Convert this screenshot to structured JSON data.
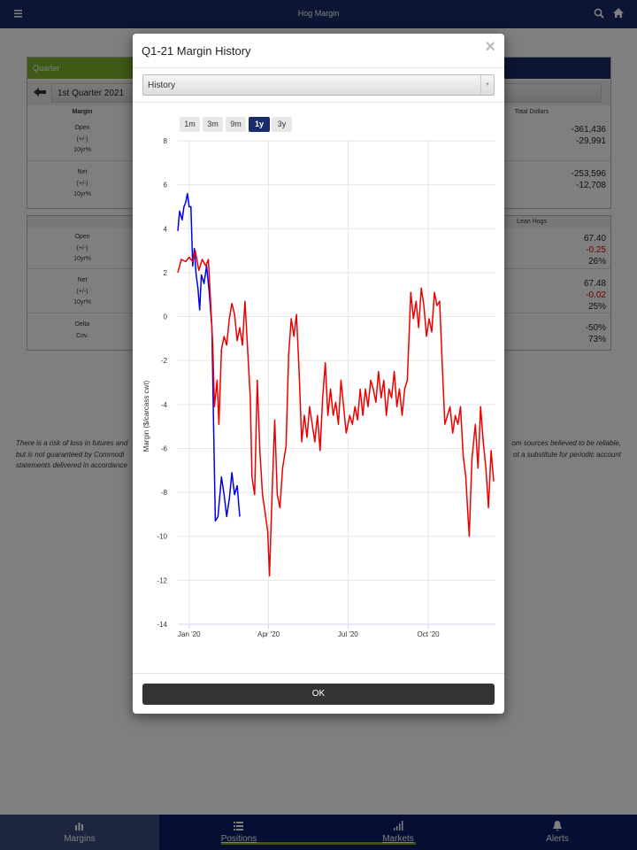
{
  "app_bar": {
    "title": "Hog Margin"
  },
  "panel1": {
    "header": "Quarter",
    "quarter": "1st Quarter 2021",
    "col_left": "Margin",
    "col_right": "Total Dollars",
    "rows": [
      {
        "labels": [
          "Open",
          "(+/-)",
          "10yr%"
        ],
        "values": [
          "-361,436",
          "-29,991"
        ]
      },
      {
        "labels": [
          "Net",
          "(+/-)",
          "10yr%"
        ],
        "values": [
          "-253,596",
          "-12,708"
        ]
      }
    ]
  },
  "panel2": {
    "col_right": "Lean Hogs",
    "rows": [
      {
        "labels": [
          "Open",
          "(+/-)",
          "10yr%"
        ],
        "values": [
          "67.40",
          "-0.25",
          "26%"
        ]
      },
      {
        "labels": [
          "Net",
          "(+/-)",
          "10yr%"
        ],
        "values": [
          "67.48",
          "-0.02",
          "25%"
        ]
      },
      {
        "labels": [
          "Delta",
          "Cov."
        ],
        "values": [
          "-50%",
          "73%"
        ]
      }
    ]
  },
  "disclaimer_left": [
    "There is a risk of loss in futures and",
    "but is not guaranteed by Commodi",
    "statements delivered in accordance"
  ],
  "disclaimer_right": [
    "om sources believed to be reliable,",
    "ot a substitute for periodic account"
  ],
  "modal": {
    "title": "Q1-21 Margin History",
    "close": "×",
    "select": "History",
    "range_buttons": [
      "1m",
      "3m",
      "9m",
      "1y",
      "3y"
    ],
    "active_range": "1y",
    "ok": "OK"
  },
  "chart_data": {
    "type": "line",
    "y_label": "Margin ($/carcass cwt)",
    "xlim": [
      -13,
      351
    ],
    "xticks": [
      {
        "value": 0,
        "label": "Jan '20"
      },
      {
        "value": 91,
        "label": "Apr '20"
      },
      {
        "value": 182,
        "label": "Jul '20"
      },
      {
        "value": 274,
        "label": "Oct '20"
      }
    ],
    "ylim": [
      -14,
      8
    ],
    "yticks": [
      -14,
      -12,
      -10,
      -8,
      -6,
      -4,
      -2,
      0,
      2,
      4,
      6,
      8
    ],
    "grid": true,
    "series": [
      {
        "color": "#0000ee",
        "x": [
          -13,
          -11,
          -8,
          -6,
          -4,
          -2,
          0,
          2,
          4,
          6,
          8,
          10,
          12,
          14,
          17,
          20,
          23,
          26,
          28,
          30,
          33,
          37,
          40,
          43,
          46,
          49,
          52,
          55,
          58
        ],
        "values": [
          3.9,
          4.8,
          4.4,
          5.0,
          5.2,
          5.6,
          5.0,
          5.0,
          2.3,
          3.1,
          1.9,
          1.3,
          0.3,
          1.9,
          1.5,
          2.3,
          1.1,
          -0.5,
          -4.9,
          -9.3,
          -9.1,
          -7.3,
          -8.1,
          -9.1,
          -8.3,
          -7.1,
          -8.1,
          -7.7,
          -9.1
        ]
      },
      {
        "color": "#ee0000",
        "x": [
          -13,
          -9,
          -4,
          0,
          4,
          7,
          11,
          15,
          19,
          22,
          24,
          27,
          29,
          32,
          34,
          37,
          40,
          43,
          46,
          49,
          52,
          55,
          58,
          61,
          64,
          67,
          70,
          72,
          75,
          78,
          81,
          84,
          87,
          90,
          92,
          95,
          98,
          101,
          104,
          107,
          111,
          114,
          117,
          120,
          123,
          126,
          129,
          132,
          135,
          138,
          141,
          144,
          147,
          150,
          153,
          156,
          159,
          162,
          165,
          168,
          171,
          174,
          177,
          180,
          184,
          187,
          190,
          193,
          196,
          199,
          202,
          205,
          208,
          211,
          214,
          217,
          220,
          223,
          226,
          229,
          232,
          235,
          238,
          241,
          244,
          247,
          250,
          254,
          257,
          260,
          263,
          266,
          269,
          272,
          275,
          278,
          281,
          284,
          287,
          290,
          293,
          296,
          299,
          302,
          305,
          308,
          311,
          314,
          317,
          319,
          321,
          324,
          328,
          331,
          334,
          337,
          340,
          343,
          346,
          349
        ],
        "values": [
          2.0,
          2.6,
          2.5,
          2.7,
          2.5,
          3.0,
          2.1,
          2.6,
          2.3,
          2.6,
          1.1,
          -1.3,
          -4.1,
          -2.9,
          -4.9,
          -1.5,
          -0.9,
          -1.3,
          -0.1,
          0.6,
          0.1,
          -1.1,
          -0.5,
          -1.3,
          0.7,
          -1.5,
          -3.7,
          -7.3,
          -8.1,
          -2.9,
          -6.1,
          -8.1,
          -8.9,
          -9.8,
          -11.8,
          -8.1,
          -4.7,
          -8.1,
          -8.7,
          -6.9,
          -5.9,
          -1.7,
          -0.1,
          -0.9,
          0.1,
          -2.5,
          -5.7,
          -4.5,
          -5.5,
          -4.1,
          -4.9,
          -5.7,
          -4.5,
          -6.1,
          -3.7,
          -2.1,
          -4.5,
          -3.3,
          -4.5,
          -3.9,
          -4.9,
          -2.9,
          -4.1,
          -5.3,
          -4.5,
          -4.9,
          -4.1,
          -4.7,
          -3.3,
          -4.5,
          -3.3,
          -4.1,
          -2.9,
          -3.3,
          -3.9,
          -2.5,
          -3.7,
          -2.9,
          -4.5,
          -3.3,
          -3.7,
          -2.5,
          -4.1,
          -3.3,
          -4.5,
          -3.3,
          -2.9,
          1.1,
          -0.1,
          0.7,
          -0.5,
          1.3,
          0.5,
          -0.9,
          -0.1,
          -0.7,
          1.1,
          0.5,
          0.7,
          -2.1,
          -4.9,
          -4.5,
          -4.1,
          -5.3,
          -4.5,
          -4.9,
          -4.1,
          -6.3,
          -7.3,
          -8.7,
          -10.0,
          -6.5,
          -4.9,
          -6.9,
          -4.1,
          -5.7,
          -6.9,
          -8.7,
          -6.1,
          -7.5
        ]
      }
    ]
  },
  "tabs": [
    "Margins",
    "Positions",
    "Markets",
    "Alerts"
  ]
}
